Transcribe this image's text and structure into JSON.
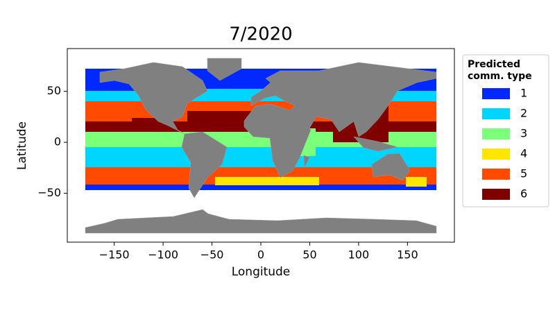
{
  "chart_data": {
    "type": "map",
    "title": "7/2020",
    "x_label": "Longitude",
    "y_label": "Latitude",
    "xlim": [
      -198,
      198
    ],
    "ylim": [
      -98,
      92
    ],
    "xticks": [
      {
        "value": -150,
        "label": "−150"
      },
      {
        "value": -100,
        "label": "−100"
      },
      {
        "value": -50,
        "label": "−50"
      },
      0,
      50,
      100,
      150
    ],
    "yticks": [
      {
        "value": -50,
        "label": "−50"
      },
      0,
      50
    ],
    "legend_title": [
      "Predicted",
      "comm. type"
    ],
    "legend": "outside right",
    "series": [
      {
        "name": "1",
        "color": "#0028ff"
      },
      {
        "name": "2",
        "color": "#00d5ff"
      },
      {
        "name": "3",
        "color": "#7cff79"
      },
      {
        "name": "4",
        "color": "#ffe600"
      },
      {
        "name": "5",
        "color": "#ff4a00"
      },
      {
        "name": "6",
        "color": "#800000"
      }
    ]
  }
}
